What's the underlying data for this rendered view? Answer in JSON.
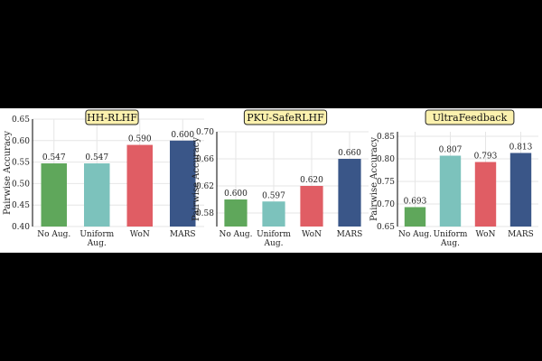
{
  "chart_data": [
    {
      "type": "bar",
      "title": "HH-RLHF",
      "ylabel": "Pairwise Accuracy",
      "categories": [
        "No Aug.",
        "Uniform\nAug.",
        "WoN",
        "MARS"
      ],
      "values": [
        0.547,
        0.547,
        0.59,
        0.6
      ],
      "value_labels": [
        "0.547",
        "0.547",
        "0.590",
        "0.600"
      ],
      "ylim": [
        0.4,
        0.65
      ],
      "yticks": [
        0.4,
        0.45,
        0.5,
        0.55,
        0.6,
        0.65
      ],
      "ytick_labels": [
        "0.40",
        "0.45",
        "0.50",
        "0.55",
        "0.60",
        "0.65"
      ],
      "colors": [
        "#5fa75b",
        "#7cc2bc",
        "#e05d64",
        "#3a5688"
      ],
      "grid": true
    },
    {
      "type": "bar",
      "title": "PKU-SafeRLHF",
      "ylabel": "Pairwise Accuracy",
      "categories": [
        "No Aug.",
        "Uniform\nAug.",
        "WoN",
        "MARS"
      ],
      "values": [
        0.6,
        0.597,
        0.62,
        0.66
      ],
      "value_labels": [
        "0.600",
        "0.597",
        "0.620",
        "0.660"
      ],
      "ylim": [
        0.56,
        0.7
      ],
      "yticks": [
        0.58,
        0.62,
        0.66,
        0.7
      ],
      "ytick_labels": [
        "0.58",
        "0.62",
        "0.66",
        "0.70"
      ],
      "colors": [
        "#5fa75b",
        "#7cc2bc",
        "#e05d64",
        "#3a5688"
      ],
      "grid": true
    },
    {
      "type": "bar",
      "title": "UltraFeedback",
      "ylabel": "Pairwise Accuracy",
      "categories": [
        "No Aug.",
        "Uniform\nAug.",
        "WoN",
        "MARS"
      ],
      "values": [
        0.693,
        0.807,
        0.793,
        0.813
      ],
      "value_labels": [
        "0.693",
        "0.807",
        "0.793",
        "0.813"
      ],
      "ylim": [
        0.65,
        0.86
      ],
      "yticks": [
        0.65,
        0.7,
        0.75,
        0.8,
        0.85
      ],
      "ytick_labels": [
        "0.65",
        "0.70",
        "0.75",
        "0.80",
        "0.85"
      ],
      "colors": [
        "#5fa75b",
        "#7cc2bc",
        "#e05d64",
        "#3a5688"
      ],
      "grid": true
    }
  ]
}
